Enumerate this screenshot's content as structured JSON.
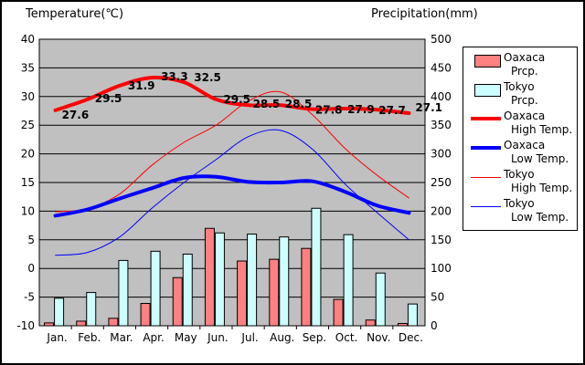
{
  "chart_data": {
    "type": "bar+line combo climate chart",
    "categories": [
      "Jan.",
      "Feb.",
      "Mar.",
      "Apr.",
      "May",
      "Jun.",
      "Jul.",
      "Aug.",
      "Sep.",
      "Oct.",
      "Nov.",
      "Dec."
    ],
    "temp_axis": {
      "title": "Temperature(℃)",
      "min": -10,
      "max": 40,
      "ticks": [
        40,
        35,
        30,
        25,
        20,
        15,
        10,
        5,
        0,
        -5,
        -10
      ]
    },
    "prcp_axis": {
      "title": "Precipitation(mm)",
      "min": 0,
      "max": 500,
      "ticks": [
        500,
        450,
        400,
        350,
        300,
        250,
        200,
        150,
        100,
        50,
        0
      ]
    },
    "plot_background": "#C0C0C0",
    "grid": "horizontal black lines every 5°C / 50mm",
    "legend_position": "right",
    "series": [
      {
        "name": "Oaxaca Prcp.",
        "type": "bar",
        "axis": "prcp",
        "color": "#FF8080",
        "width": 0,
        "values": [
          5,
          8,
          13,
          39,
          84,
          170,
          113,
          116,
          135,
          46,
          10,
          4
        ]
      },
      {
        "name": "Tokyo Prcp.",
        "type": "bar",
        "axis": "prcp",
        "color": "#CCFFFF",
        "width": 0,
        "values": [
          48,
          58,
          114,
          130,
          125,
          162,
          160,
          155,
          205,
          159,
          92,
          38
        ]
      },
      {
        "name": "Oaxaca High Temp.",
        "type": "line",
        "axis": "temp",
        "color": "#FF0000",
        "width": 4,
        "values": [
          27.6,
          29.5,
          31.9,
          33.3,
          32.5,
          29.5,
          28.5,
          28.5,
          27.8,
          27.9,
          27.7,
          27.1
        ],
        "point_labels": [
          "27.6",
          "29.5",
          "31.9",
          "33.3",
          "32.5",
          "29.5",
          "28.5",
          "28.5",
          "27.8",
          "27.9",
          "27.7",
          "27.1"
        ]
      },
      {
        "name": "Oaxaca Low Temp.",
        "type": "line",
        "axis": "temp",
        "color": "#0000FF",
        "width": 4,
        "values": [
          9.2,
          10.3,
          12.2,
          14.0,
          15.8,
          16.0,
          15.1,
          15.0,
          15.2,
          13.4,
          11.0,
          9.7
        ]
      },
      {
        "name": "Tokyo High Temp.",
        "type": "line",
        "axis": "temp",
        "color": "#FF0000",
        "width": 1,
        "values": [
          9.9,
          10.4,
          13.0,
          18.0,
          22.0,
          25.0,
          29.2,
          30.8,
          26.8,
          21.0,
          16.3,
          12.3
        ]
      },
      {
        "name": "Tokyo Low Temp.",
        "type": "line",
        "axis": "temp",
        "color": "#0000FF",
        "width": 1,
        "values": [
          2.3,
          2.8,
          5.5,
          10.5,
          15.0,
          19.0,
          23.0,
          24.1,
          20.8,
          14.8,
          9.8,
          5.0
        ]
      }
    ]
  },
  "legend": {
    "items": [
      {
        "name": "Oaxaca",
        "kind": "Prcp.",
        "swatch": "bar",
        "color": "#FF8080"
      },
      {
        "name": "Tokyo",
        "kind": "Prcp.",
        "swatch": "bar",
        "color": "#CCFFFF"
      },
      {
        "name": "Oaxaca",
        "kind": "High Temp.",
        "swatch": "line-thick",
        "color": "#FF0000"
      },
      {
        "name": "Oaxaca",
        "kind": "Low Temp.",
        "swatch": "line-thick",
        "color": "#0000FF"
      },
      {
        "name": "Tokyo",
        "kind": "High Temp.",
        "swatch": "line-thin",
        "color": "#FF0000"
      },
      {
        "name": "Tokyo",
        "kind": "Low Temp.",
        "swatch": "line-thin",
        "color": "#0000FF"
      }
    ]
  }
}
